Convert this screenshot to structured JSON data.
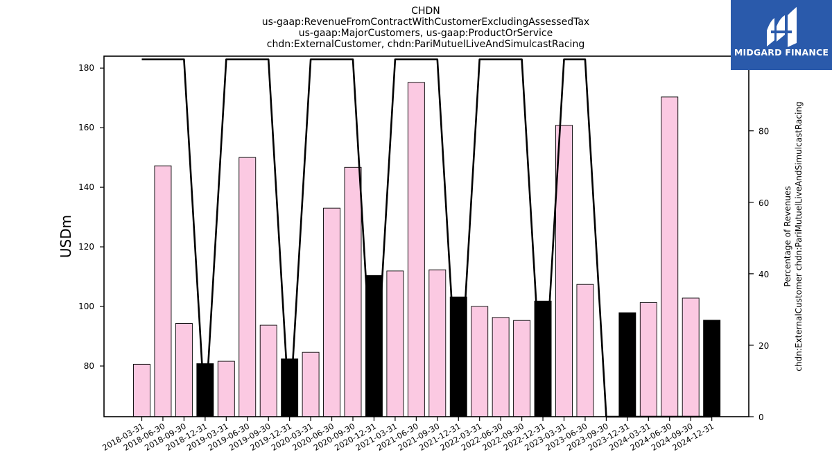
{
  "titles": {
    "line1": "CHDN",
    "line2": "us-gaap:RevenueFromContractWithCustomerExcludingAssessedTax",
    "line3": "us-gaap:MajorCustomers, us-gaap:ProductOrService",
    "line4": "chdn:ExternalCustomer, chdn:PariMutuelLiveAndSimulcastRacing"
  },
  "logo": {
    "text": "MIDGARD FINANCE",
    "color": "#2a5aab"
  },
  "colors": {
    "bar_pink": "#fbc9e2",
    "bar_black": "#000000",
    "line": "#000000"
  },
  "chart_data": {
    "type": "bar",
    "ylabel": "USDm",
    "y2label_line1": "Percentage of Revenues",
    "y2label_line2": "chdn:ExternalCustomer chdn:PariMutuelLiveAndSimulcastRacing",
    "ylim": [
      63,
      184
    ],
    "yticks": [
      80,
      100,
      120,
      140,
      160,
      180
    ],
    "y2lim": [
      0,
      100.9
    ],
    "y2ticks": [
      0,
      20,
      40,
      60,
      80,
      100
    ],
    "categories": [
      "2018-03-31",
      "2018-06-30",
      "2018-09-30",
      "2018-12-31",
      "2019-03-31",
      "2019-06-30",
      "2019-09-30",
      "2019-12-31",
      "2020-03-31",
      "2020-06-30",
      "2020-09-30",
      "2020-12-31",
      "2021-03-31",
      "2021-06-30",
      "2021-09-30",
      "2021-12-31",
      "2022-03-31",
      "2022-06-30",
      "2022-09-30",
      "2022-12-31",
      "2023-03-31",
      "2023-06-30",
      "2023-09-30",
      "2023-12-31",
      "2024-03-31",
      "2024-06-30",
      "2024-09-30",
      "2024-12-31"
    ],
    "series": [
      {
        "values": [
          80.6,
          147.2,
          94.3,
          80.8,
          81.6,
          150.0,
          93.7,
          82.4,
          84.6,
          133.0,
          146.7,
          110.4,
          111.9,
          175.2,
          112.3,
          103.2,
          100.0,
          96.3,
          95.3,
          101.8,
          160.8,
          107.4,
          63.0,
          97.9,
          101.3,
          170.3,
          102.8,
          95.4
        ],
        "highlight": [
          false,
          false,
          false,
          true,
          false,
          false,
          false,
          true,
          false,
          false,
          false,
          true,
          false,
          false,
          false,
          true,
          false,
          false,
          false,
          true,
          false,
          false,
          false,
          true,
          false,
          false,
          false,
          true
        ]
      },
      {
        "axis": "right",
        "type": "line",
        "values": [
          100,
          100,
          100,
          0,
          100,
          100,
          100,
          0,
          100,
          100,
          100,
          0,
          100,
          100,
          100,
          0,
          100,
          100,
          100,
          0,
          100,
          100,
          0,
          0,
          0,
          0,
          0,
          0
        ]
      }
    ]
  }
}
